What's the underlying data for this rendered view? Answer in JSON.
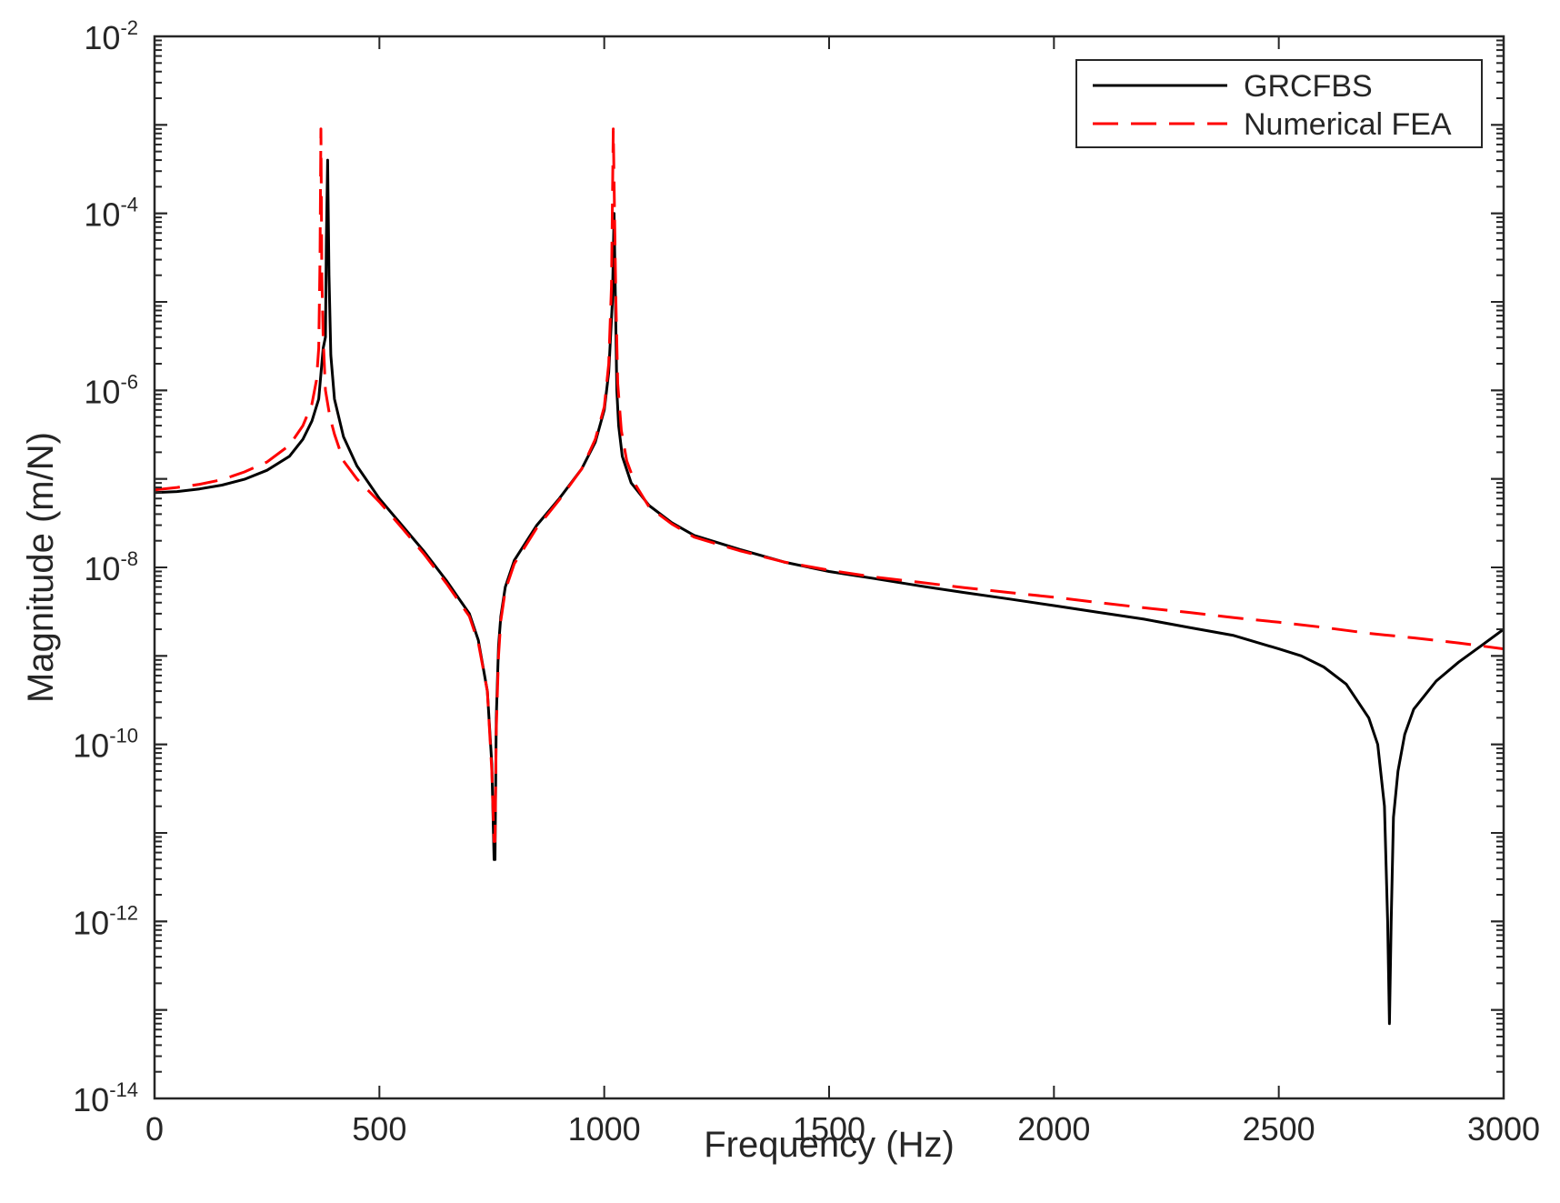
{
  "chart_data": {
    "type": "line",
    "title": "",
    "xlabel": "Frequency (Hz)",
    "ylabel": "Magnitude (m/N)",
    "xlim": [
      0,
      3000
    ],
    "ylim": [
      1e-14,
      0.01
    ],
    "yscale": "log",
    "grid": false,
    "legend_position": "top-right",
    "xticks": [
      0,
      500,
      1000,
      1500,
      2000,
      2500,
      3000
    ],
    "xtick_labels": [
      "0",
      "500",
      "1000",
      "1500",
      "2000",
      "2500",
      "3000"
    ],
    "yticks": [
      1e-14,
      1e-12,
      1e-10,
      1e-08,
      1e-06,
      0.0001,
      0.01
    ],
    "ytick_labels": [
      {
        "base": "10",
        "exp": "-14"
      },
      {
        "base": "10",
        "exp": "-12"
      },
      {
        "base": "10",
        "exp": "-10"
      },
      {
        "base": "10",
        "exp": "-8"
      },
      {
        "base": "10",
        "exp": "-6"
      },
      {
        "base": "10",
        "exp": "-4"
      },
      {
        "base": "10",
        "exp": "-2"
      }
    ],
    "series": [
      {
        "name": "GRCFBS",
        "color": "#000000",
        "style": "solid",
        "x": [
          0,
          50,
          100,
          150,
          200,
          250,
          300,
          330,
          350,
          365,
          375,
          380,
          382,
          385,
          388,
          392,
          400,
          420,
          450,
          500,
          550,
          600,
          650,
          700,
          720,
          740,
          750,
          755,
          757,
          760,
          765,
          770,
          780,
          800,
          850,
          900,
          950,
          980,
          1000,
          1010,
          1018,
          1022,
          1025,
          1028,
          1032,
          1040,
          1060,
          1100,
          1150,
          1200,
          1300,
          1400,
          1500,
          1600,
          1700,
          1800,
          1900,
          2000,
          2100,
          2200,
          2300,
          2400,
          2500,
          2550,
          2600,
          2650,
          2700,
          2720,
          2735,
          2742,
          2746,
          2750,
          2755,
          2765,
          2780,
          2800,
          2850,
          2900,
          2950,
          3000
        ],
        "y": [
          7e-08,
          7.2e-08,
          7.7e-08,
          8.5e-08,
          9.9e-08,
          1.25e-07,
          1.8e-07,
          2.8e-07,
          4.5e-07,
          8e-07,
          3e-06,
          4e-06,
          5e-05,
          0.0004,
          2e-05,
          2.5e-06,
          8e-07,
          3e-07,
          1.4e-07,
          6e-08,
          3e-08,
          1.5e-08,
          7e-09,
          3e-09,
          1.5e-09,
          4e-10,
          6e-11,
          5e-12,
          5e-12,
          2e-10,
          1.3e-09,
          2.8e-09,
          6e-09,
          1.2e-08,
          3e-08,
          6e-08,
          1.3e-07,
          2.6e-07,
          6e-07,
          1.6e-06,
          1e-05,
          0.0001,
          1e-05,
          1e-06,
          4e-07,
          1.8e-07,
          9e-08,
          5e-08,
          3.2e-08,
          2.3e-08,
          1.6e-08,
          1.15e-08,
          9e-09,
          7.5e-09,
          6.2e-09,
          5.2e-09,
          4.4e-09,
          3.7e-09,
          3.1e-09,
          2.6e-09,
          2.1e-09,
          1.7e-09,
          1.2e-09,
          1e-09,
          7.5e-10,
          4.8e-10,
          2e-10,
          1e-10,
          2e-11,
          1e-12,
          7e-14,
          1e-12,
          1.5e-11,
          5e-11,
          1.3e-10,
          2.5e-10,
          5.2e-10,
          8.5e-10,
          1.3e-09,
          2e-09
        ]
      },
      {
        "name": "Numerical FEA",
        "color": "#ff0000",
        "style": "dashed",
        "x": [
          0,
          50,
          100,
          150,
          200,
          250,
          300,
          330,
          350,
          360,
          365,
          368,
          370,
          372,
          375,
          380,
          390,
          400,
          420,
          450,
          500,
          550,
          600,
          650,
          700,
          720,
          740,
          750,
          755,
          757,
          760,
          765,
          770,
          780,
          800,
          850,
          900,
          950,
          980,
          1000,
          1010,
          1016,
          1020,
          1023,
          1026,
          1030,
          1038,
          1050,
          1070,
          1100,
          1150,
          1200,
          1300,
          1400,
          1500,
          1600,
          1700,
          1800,
          1900,
          2000,
          2100,
          2200,
          2300,
          2400,
          2500,
          2600,
          2700,
          2800,
          2900,
          3000
        ],
        "y": [
          7.5e-08,
          8e-08,
          8.7e-08,
          9.8e-08,
          1.2e-07,
          1.55e-07,
          2.4e-07,
          4e-07,
          7e-07,
          1.3e-06,
          3e-06,
          3e-05,
          0.0009,
          2e-05,
          4e-06,
          1e-06,
          5e-07,
          3.2e-07,
          1.6e-07,
          1e-07,
          5.5e-08,
          2.8e-08,
          1.4e-08,
          6.5e-09,
          2.8e-09,
          1.4e-09,
          4e-10,
          5e-11,
          8e-12,
          8e-12,
          1.5e-10,
          1e-09,
          2.5e-09,
          5.5e-09,
          1.1e-08,
          2.8e-08,
          5.8e-08,
          1.3e-07,
          2.8e-07,
          6.5e-07,
          2e-06,
          1.5e-05,
          0.0009,
          0.0001,
          1e-05,
          1.2e-06,
          3.5e-07,
          1.6e-07,
          8.5e-08,
          4.8e-08,
          3.1e-08,
          2.2e-08,
          1.55e-08,
          1.15e-08,
          9.3e-09,
          7.8e-09,
          6.8e-09,
          5.9e-09,
          5.2e-09,
          4.6e-09,
          4e-09,
          3.5e-09,
          3.1e-09,
          2.7e-09,
          2.4e-09,
          2.1e-09,
          1.8e-09,
          1.6e-09,
          1.4e-09,
          1.2e-09
        ]
      }
    ]
  }
}
